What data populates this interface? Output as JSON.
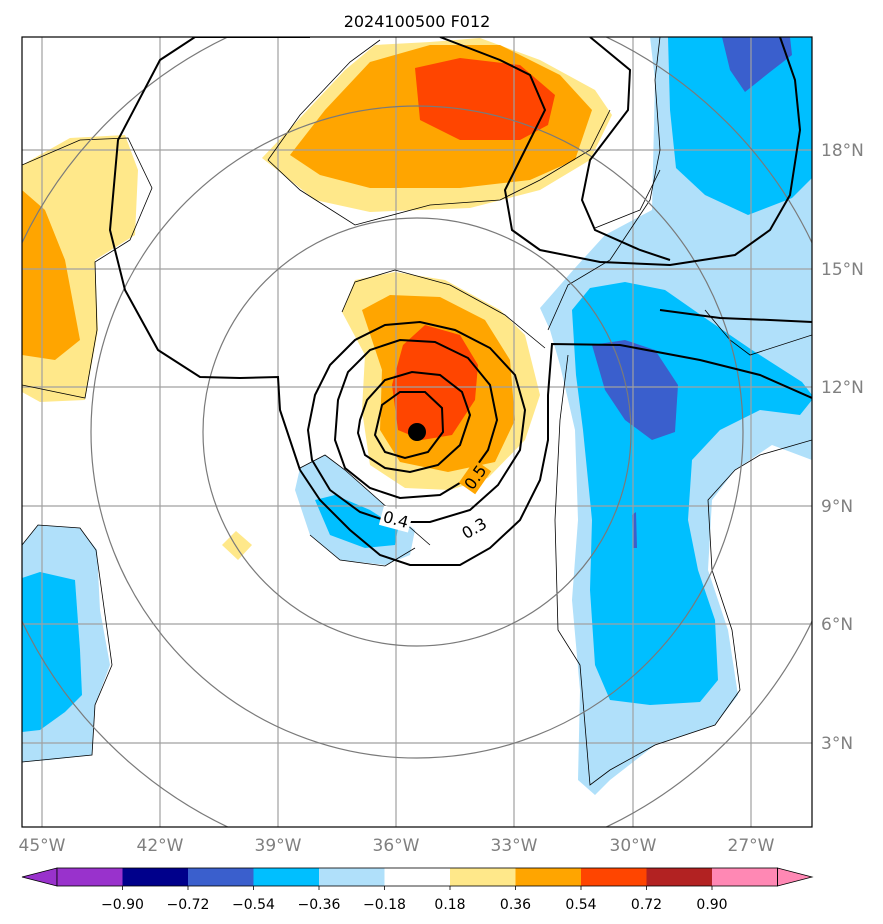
{
  "title": "2024100500 F012",
  "map": {
    "lon_range": [
      -45.5,
      -25.5
    ],
    "lat_range": [
      0.8,
      20.8
    ],
    "lon_ticks": [
      {
        "value": -45,
        "label": "45°W"
      },
      {
        "value": -42,
        "label": "42°W"
      },
      {
        "value": -39,
        "label": "39°W"
      },
      {
        "value": -36,
        "label": "36°W"
      },
      {
        "value": -33,
        "label": "33°W"
      },
      {
        "value": -30,
        "label": "30°W"
      },
      {
        "value": -27,
        "label": "27°W"
      }
    ],
    "lat_ticks": [
      {
        "value": 3,
        "label": "3°N"
      },
      {
        "value": 6,
        "label": "6°N"
      },
      {
        "value": 9,
        "label": "9°N"
      },
      {
        "value": 12,
        "label": "12°N"
      },
      {
        "value": 15,
        "label": "15°N"
      },
      {
        "value": 18,
        "label": "18°N"
      }
    ],
    "grid": true,
    "storm_center": {
      "lon": -35.5,
      "lat": 10.8
    }
  },
  "contour_labels": [
    {
      "text": "0.5",
      "lon": -33.5,
      "lat": 9.6,
      "angle": -55
    },
    {
      "text": "0.4",
      "lon": -35.5,
      "lat": 8.5,
      "angle": 15
    },
    {
      "text": "0.3",
      "lon": -33.5,
      "lat": 8.3,
      "angle": -30
    }
  ],
  "colorbar": {
    "ticks": [
      "−0.90",
      "−0.72",
      "−0.54",
      "−0.36",
      "−0.18",
      "0.18",
      "0.36",
      "0.54",
      "0.72",
      "0.90"
    ],
    "colors": [
      "#9932cc",
      "#00008b",
      "#3a5fcd",
      "#00bfff",
      "#b0e0fa",
      "#ffffff",
      "#ffe88a",
      "#ffa500",
      "#ff4500",
      "#b22222",
      "#ff88b4"
    ],
    "extend": "both"
  }
}
